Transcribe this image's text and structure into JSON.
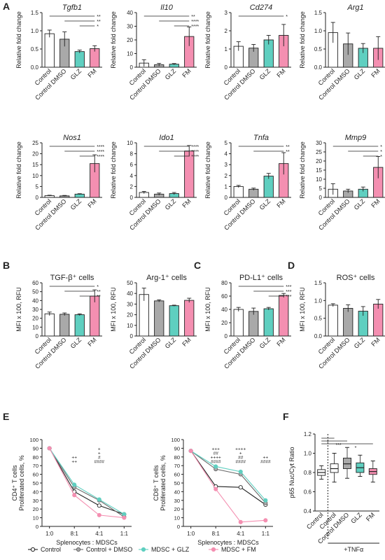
{
  "colors": {
    "control": "#ffffff",
    "dmso": "#a9a9a9",
    "glz": "#5fcfc0",
    "fm": "#f48fb1",
    "axis": "#222222",
    "star_teal": "#2bb5a3",
    "star_pink": "#e8508a"
  },
  "panels": {
    "A": "A",
    "B": "B",
    "C": "C",
    "D": "D",
    "E": "E",
    "F": "F"
  },
  "categories": [
    "Control",
    "Control DMSO",
    "GLZ",
    "FM"
  ],
  "chart_data": [
    {
      "type": "bar",
      "panel": "A",
      "title": "Tgfb1",
      "title_italic": true,
      "ylabel": "Relative fold change",
      "ylim": [
        0,
        1.5
      ],
      "yticks": [
        "0.0",
        "0.5",
        "1.0",
        "1.5"
      ],
      "categories": [
        "Control",
        "Control DMSO",
        "GLZ",
        "FM"
      ],
      "values": [
        0.92,
        0.77,
        0.43,
        0.51
      ],
      "errors": [
        0.1,
        0.2,
        0.04,
        0.08
      ],
      "sig": [
        {
          "from": 0,
          "to": 3,
          "label": "**"
        },
        {
          "from": 1,
          "to": 3,
          "label": "**"
        },
        {
          "from": 2,
          "to": 3,
          "label": "*"
        }
      ]
    },
    {
      "type": "bar",
      "panel": "A",
      "title": "Il10",
      "title_italic": true,
      "ylabel": "Relative fold change",
      "ylim": [
        0,
        40
      ],
      "yticks": [
        "0",
        "10",
        "20",
        "30",
        "40"
      ],
      "categories": [
        "Control",
        "Control DMSO",
        "GLZ",
        "FM"
      ],
      "values": [
        3,
        1.8,
        2.2,
        22.5
      ],
      "errors": [
        2.5,
        1,
        0.5,
        7
      ],
      "sig": [
        {
          "from": 0,
          "to": 3,
          "label": "**"
        },
        {
          "from": 1,
          "to": 3,
          "label": "****"
        },
        {
          "from": 2,
          "to": 3,
          "label": "****"
        }
      ]
    },
    {
      "type": "bar",
      "panel": "A",
      "title": "Cd274",
      "title_italic": true,
      "ylabel": "Relative fold change",
      "ylim": [
        0,
        3
      ],
      "yticks": [
        "0",
        "1",
        "2",
        "3"
      ],
      "categories": [
        "Control",
        "Control DMSO",
        "GLZ",
        "FM"
      ],
      "values": [
        1.15,
        1.05,
        1.5,
        1.75
      ],
      "errors": [
        0.25,
        0.2,
        0.25,
        0.6
      ],
      "sig": [
        {
          "from": 0,
          "to": 3,
          "label": "*"
        }
      ]
    },
    {
      "type": "bar",
      "panel": "A",
      "title": "Arg1",
      "title_italic": true,
      "ylabel": "Relative fold change",
      "ylim": [
        0,
        1.5
      ],
      "yticks": [
        "0.0",
        "0.5",
        "1.0",
        "1.5"
      ],
      "categories": [
        "Control",
        "Control DMSO",
        "GLZ",
        "FM"
      ],
      "values": [
        0.95,
        0.64,
        0.52,
        0.52
      ],
      "errors": [
        0.28,
        0.3,
        0.13,
        0.32
      ],
      "sig": []
    },
    {
      "type": "bar",
      "panel": "A",
      "title": "Nos1",
      "title_italic": true,
      "ylabel": "Relative fold change",
      "ylim": [
        0,
        25
      ],
      "yticks": [
        "0",
        "5",
        "10",
        "15",
        "20",
        "25"
      ],
      "categories": [
        "Control",
        "Control DMSO",
        "GLZ",
        "FM"
      ],
      "values": [
        0.8,
        0.7,
        1.5,
        15.5
      ],
      "errors": [
        0.2,
        0.2,
        0.2,
        4
      ],
      "sig": [
        {
          "from": 0,
          "to": 3,
          "label": "****"
        },
        {
          "from": 1,
          "to": 3,
          "label": "****"
        },
        {
          "from": 2,
          "to": 3,
          "label": "****"
        }
      ]
    },
    {
      "type": "bar",
      "panel": "A",
      "title": "Ido1",
      "title_italic": true,
      "ylabel": "Relative fold change",
      "ylim": [
        0,
        10
      ],
      "yticks": [
        "0",
        "2",
        "4",
        "6",
        "8",
        "10"
      ],
      "categories": [
        "Control",
        "Control DMSO",
        "GLZ",
        "FM"
      ],
      "values": [
        0.9,
        0.6,
        0.7,
        8.5
      ],
      "errors": [
        0.2,
        0.2,
        0.2,
        1
      ],
      "sig": [
        {
          "from": 0,
          "to": 3,
          "label": "****"
        },
        {
          "from": 1,
          "to": 3,
          "label": "****"
        },
        {
          "from": 2,
          "to": 3,
          "label": "****"
        }
      ]
    },
    {
      "type": "bar",
      "panel": "A",
      "title": "Tnfa",
      "title_italic": true,
      "ylabel": "Relative fold change",
      "ylim": [
        0,
        5
      ],
      "yticks": [
        "0",
        "1",
        "2",
        "3",
        "4",
        "5"
      ],
      "categories": [
        "Control",
        "Control DMSO",
        "GLZ",
        "FM"
      ],
      "values": [
        1,
        0.75,
        1.95,
        3.1
      ],
      "errors": [
        0.1,
        0.1,
        0.25,
        1
      ],
      "sig": [
        {
          "from": 0,
          "to": 3,
          "label": "**"
        },
        {
          "from": 1,
          "to": 3,
          "label": "**"
        }
      ]
    },
    {
      "type": "bar",
      "panel": "A",
      "title": "Mmp9",
      "title_italic": true,
      "ylabel": "Relative fold change",
      "ylim": [
        0,
        30
      ],
      "yticks": [
        "0",
        "5",
        "10",
        "15",
        "20",
        "25",
        "30"
      ],
      "categories": [
        "Control",
        "Control DMSO",
        "GLZ",
        "FM"
      ],
      "values": [
        4.5,
        3.5,
        4.5,
        16.5
      ],
      "errors": [
        3,
        1,
        1.2,
        6
      ],
      "sig": [
        {
          "from": 0,
          "to": 3,
          "label": "*"
        },
        {
          "from": 1,
          "to": 3,
          "label": "*"
        },
        {
          "from": 2,
          "to": 3,
          "label": "*"
        }
      ]
    },
    {
      "type": "bar",
      "panel": "B",
      "title": "TGF-β⁺ cells",
      "title_italic": false,
      "ylabel": "MFI x 100, RFU",
      "ylim": [
        0,
        60
      ],
      "yticks": [
        "0",
        "10",
        "20",
        "30",
        "40",
        "50",
        "60"
      ],
      "categories": [
        "Control",
        "Control DMSO",
        "GLZ",
        "FM"
      ],
      "values": [
        25,
        24.5,
        24,
        45
      ],
      "errors": [
        2,
        1.5,
        1,
        7
      ],
      "sig": [
        {
          "from": 0,
          "to": 3,
          "label": "*"
        },
        {
          "from": 1,
          "to": 3,
          "label": "**"
        },
        {
          "from": 2,
          "to": 3,
          "label": "**"
        }
      ]
    },
    {
      "type": "bar",
      "panel": "B",
      "title": "Arg-1⁺ cells",
      "title_italic": false,
      "ylabel": "MFI x 100, RFU",
      "ylim": [
        0,
        50
      ],
      "yticks": [
        "0",
        "10",
        "20",
        "30",
        "40",
        "50"
      ],
      "categories": [
        "Control",
        "Control DMSO",
        "GLZ",
        "FM"
      ],
      "values": [
        39,
        33,
        28.5,
        33.5
      ],
      "errors": [
        6,
        1,
        0.5,
        2
      ],
      "sig": []
    },
    {
      "type": "bar",
      "panel": "C",
      "title": "PD-L1⁺ cells",
      "title_italic": false,
      "ylabel": "MFI x 100, RFU",
      "ylim": [
        0,
        80
      ],
      "yticks": [
        "0",
        "20",
        "40",
        "60",
        "80"
      ],
      "categories": [
        "Control",
        "Control DMSO",
        "GLZ",
        "FM"
      ],
      "values": [
        40,
        37,
        41,
        61
      ],
      "errors": [
        3,
        5,
        2,
        3
      ],
      "sig": [
        {
          "from": 0,
          "to": 3,
          "label": "***"
        },
        {
          "from": 1,
          "to": 3,
          "label": "***"
        },
        {
          "from": 2,
          "to": 3,
          "label": "***"
        }
      ]
    },
    {
      "type": "bar",
      "panel": "D",
      "title": "ROS⁺ cells",
      "title_italic": false,
      "ylabel": "MFI x 100, RFU",
      "ylim": [
        0,
        1.5
      ],
      "yticks": [
        "0.0",
        "0.5",
        "1.0",
        "1.5"
      ],
      "categories": [
        "Control",
        "Control DMSO",
        "GLZ",
        "FM"
      ],
      "values": [
        0.87,
        0.78,
        0.7,
        0.9
      ],
      "errors": [
        0.04,
        0.1,
        0.13,
        0.13
      ],
      "sig": []
    },
    {
      "type": "line",
      "panel": "E",
      "ylabel": "CD4⁺ T cells\nProliferated cells, %",
      "xlabel": "Splenocytes : MDSCs",
      "x": [
        "1:0",
        "8:1",
        "4:1",
        "1:1"
      ],
      "ylim": [
        0,
        100
      ],
      "yticks": [
        "0",
        "10",
        "20",
        "30",
        "40",
        "50",
        "60",
        "70",
        "80",
        "90",
        "100"
      ],
      "series": [
        {
          "name": "Control",
          "values": [
            90,
            40,
            24,
            14
          ]
        },
        {
          "name": "Control + DMSO",
          "values": [
            90,
            45,
            30,
            11
          ]
        },
        {
          "name": "MDSC + GLZ",
          "values": [
            90,
            48,
            31,
            14
          ]
        },
        {
          "name": "MDSC + FM",
          "values": [
            90,
            36,
            13,
            10
          ]
        }
      ],
      "annotations": [
        {
          "xi": 1,
          "lines": [
            {
              "t": "++",
              "c": "star_teal"
            },
            {
              "t": "++",
              "c": "star_pink"
            }
          ]
        },
        {
          "xi": 2,
          "lines": [
            {
              "t": "+",
              "c": "star_teal"
            },
            {
              "t": "+",
              "c": "star_pink"
            },
            {
              "t": "#",
              "c": "axis"
            },
            {
              "t": "####",
              "c": "star_pink"
            }
          ]
        }
      ]
    },
    {
      "type": "line",
      "panel": "E",
      "ylabel": "CD8⁺ T cells\nProliferated cells, %",
      "xlabel": "Splenocytes : MDSCs",
      "x": [
        "1:0",
        "8:1",
        "4:1",
        "1:1"
      ],
      "ylim": [
        0,
        100
      ],
      "yticks": [
        "0",
        "10",
        "20",
        "30",
        "40",
        "50",
        "60",
        "70",
        "80",
        "90",
        "100"
      ],
      "series": [
        {
          "name": "Control",
          "values": [
            87,
            46,
            45,
            25
          ]
        },
        {
          "name": "Control + DMSO",
          "values": [
            87,
            66,
            60,
            27
          ]
        },
        {
          "name": "MDSC + GLZ",
          "values": [
            87,
            69,
            63,
            30
          ]
        },
        {
          "name": "MDSC + FM",
          "values": [
            87,
            43,
            5,
            7
          ]
        }
      ],
      "annotations": [
        {
          "xi": 1,
          "lines": [
            {
              "t": "+++",
              "c": "star_teal"
            },
            {
              "t": "##",
              "c": "axis"
            },
            {
              "t": "++++",
              "c": "star_pink"
            },
            {
              "t": "####",
              "c": "star_pink"
            }
          ]
        },
        {
          "xi": 2,
          "lines": [
            {
              "t": "++++",
              "c": "star_pink"
            },
            {
              "t": "+",
              "c": "star_teal"
            },
            {
              "t": "##",
              "c": "axis"
            },
            {
              "t": "####",
              "c": "star_pink"
            }
          ]
        },
        {
          "xi": 3,
          "lines": [
            {
              "t": "++",
              "c": "star_pink"
            },
            {
              "t": "####",
              "c": "star_pink"
            }
          ]
        }
      ]
    },
    {
      "type": "box",
      "panel": "F",
      "ylabel": "p65 Nuc/Cyt Ratio",
      "ylim": [
        0.4,
        1.2
      ],
      "yticks": [
        "0.4",
        "0.6",
        "0.8",
        "1.0",
        "1.2"
      ],
      "categories": [
        "Control",
        "Control",
        "Control DMSO",
        "GLZ",
        "FM"
      ],
      "boxes": [
        {
          "min": 0.73,
          "q1": 0.77,
          "median": 0.8,
          "q3": 0.83,
          "max": 0.87,
          "color": "control"
        },
        {
          "min": 0.7,
          "q1": 0.8,
          "median": 0.84,
          "q3": 0.89,
          "max": 1.0,
          "color": "control"
        },
        {
          "min": 0.74,
          "q1": 0.84,
          "median": 0.89,
          "q3": 0.95,
          "max": 1.06,
          "color": "dmso"
        },
        {
          "min": 0.76,
          "q1": 0.8,
          "median": 0.85,
          "q3": 0.9,
          "max": 0.98,
          "color": "glz"
        },
        {
          "min": 0.7,
          "q1": 0.78,
          "median": 0.81,
          "q3": 0.84,
          "max": 0.92,
          "color": "fm"
        }
      ],
      "sig": [
        {
          "from": 0,
          "to": 1,
          "label": "*"
        },
        {
          "from": 0,
          "to": 2,
          "label": "***"
        },
        {
          "from": 0,
          "to": 4,
          "label": "*"
        }
      ],
      "group_label": "+TNFα"
    }
  ],
  "legend": [
    {
      "label": "Control",
      "color": "control"
    },
    {
      "label": "Control + DMSO",
      "color": "dmso"
    },
    {
      "label": "MDSC + GLZ",
      "color": "glz"
    },
    {
      "label": "MDSC + FM",
      "color": "fm"
    }
  ]
}
